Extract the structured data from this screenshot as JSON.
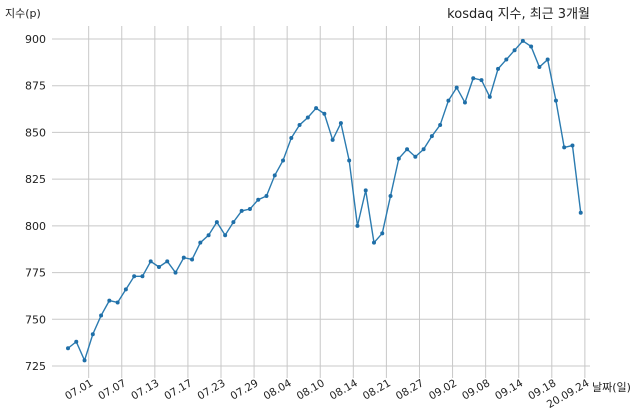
{
  "chart_data": {
    "type": "line",
    "title": "kosdaq 지수, 최근 3개월",
    "xlabel": "날짜(일)",
    "ylabel": "지수(p)",
    "ylim": [
      725,
      900
    ],
    "yticks": [
      725,
      750,
      775,
      800,
      825,
      850,
      875,
      900
    ],
    "grid": true,
    "x_tick_labels": [
      "07.01",
      "07.07",
      "07.13",
      "07.17",
      "07.23",
      "07.29",
      "08.04",
      "08.10",
      "08.14",
      "08.21",
      "08.27",
      "09.02",
      "09.08",
      "09.14",
      "09.18",
      "20.09.24"
    ],
    "x_tick_positions": [
      2.5,
      6.5,
      10.5,
      14.5,
      18.5,
      22.5,
      26.5,
      30.5,
      34.5,
      38.5,
      42.5,
      46.5,
      50.5,
      54.5,
      58.5,
      62.5
    ],
    "series": [
      {
        "values": [
          734.5,
          738,
          728,
          742,
          752,
          760,
          759,
          766,
          773,
          773,
          781,
          778,
          781,
          775,
          783,
          782,
          791,
          795,
          802,
          795,
          802,
          808,
          809,
          814,
          816,
          827,
          835,
          847,
          854,
          858,
          863,
          860,
          846,
          855,
          835,
          800,
          819,
          791,
          796,
          816,
          836,
          841,
          837,
          841,
          848,
          854,
          867,
          874,
          866,
          879,
          878,
          869,
          884,
          889,
          894,
          899,
          896,
          885,
          889,
          867,
          842,
          843,
          807
        ]
      }
    ]
  }
}
